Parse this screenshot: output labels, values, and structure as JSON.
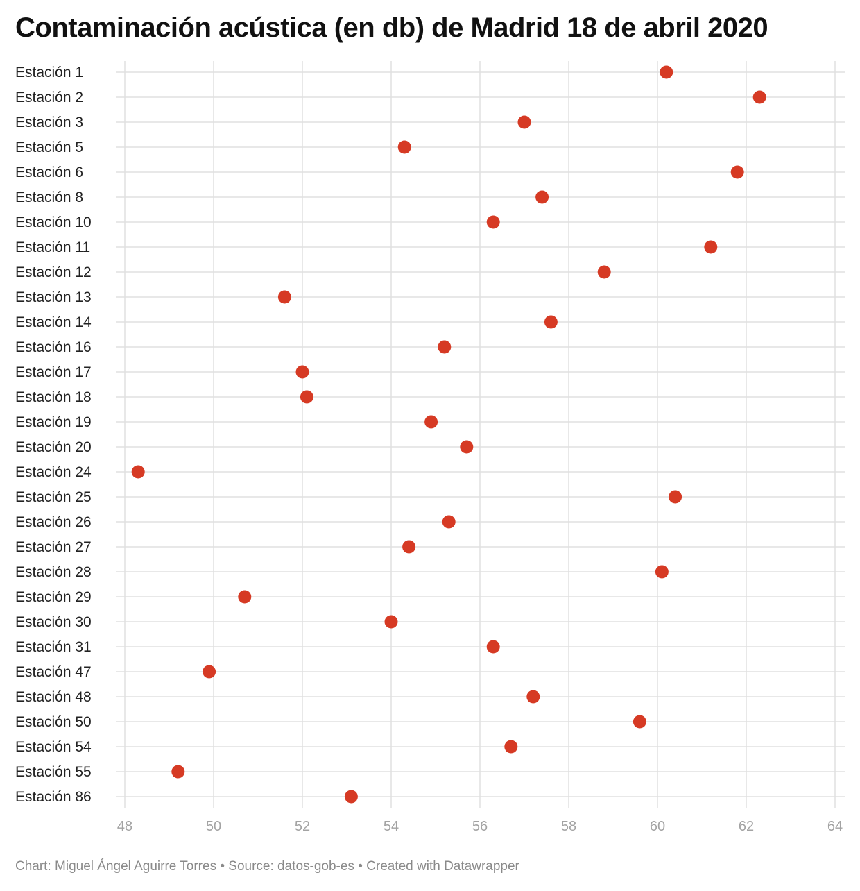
{
  "title": "Contaminación acústica (en db) de Madrid 18 de abril 2020",
  "footer": "Chart: Miguel Ángel Aguirre Torres • Source: datos-gob-es • Created with Datawrapper",
  "colors": {
    "dot": "#d63a24",
    "grid": "#e0e0e0",
    "label": "#222222",
    "tick": "#a3a3a3"
  },
  "chart_data": {
    "type": "scatter",
    "title": "Contaminación acústica (en db) de Madrid 18 de abril 2020",
    "xlabel": "",
    "ylabel": "",
    "xlim": [
      48,
      64
    ],
    "xticks": [
      48,
      50,
      52,
      54,
      56,
      58,
      60,
      62,
      64
    ],
    "grid": true,
    "categories": [
      "Estación 1",
      "Estación 2",
      "Estación 3",
      "Estación 5",
      "Estación 6",
      "Estación 8",
      "Estación 10",
      "Estación 11",
      "Estación 12",
      "Estación 13",
      "Estación 14",
      "Estación 16",
      "Estación 17",
      "Estación 18",
      "Estación 19",
      "Estación 20",
      "Estación 24",
      "Estación 25",
      "Estación 26",
      "Estación 27",
      "Estación 28",
      "Estación 29",
      "Estación 30",
      "Estación 31",
      "Estación 47",
      "Estación 48",
      "Estación 50",
      "Estación 54",
      "Estación 55",
      "Estación 86"
    ],
    "values": [
      60.2,
      62.3,
      57.0,
      54.3,
      61.8,
      57.4,
      56.3,
      61.2,
      58.8,
      51.6,
      57.6,
      55.2,
      52.0,
      52.1,
      54.9,
      55.7,
      48.3,
      60.4,
      55.3,
      54.4,
      60.1,
      50.7,
      54.0,
      56.3,
      49.9,
      57.2,
      59.6,
      56.7,
      49.2,
      53.1
    ]
  }
}
